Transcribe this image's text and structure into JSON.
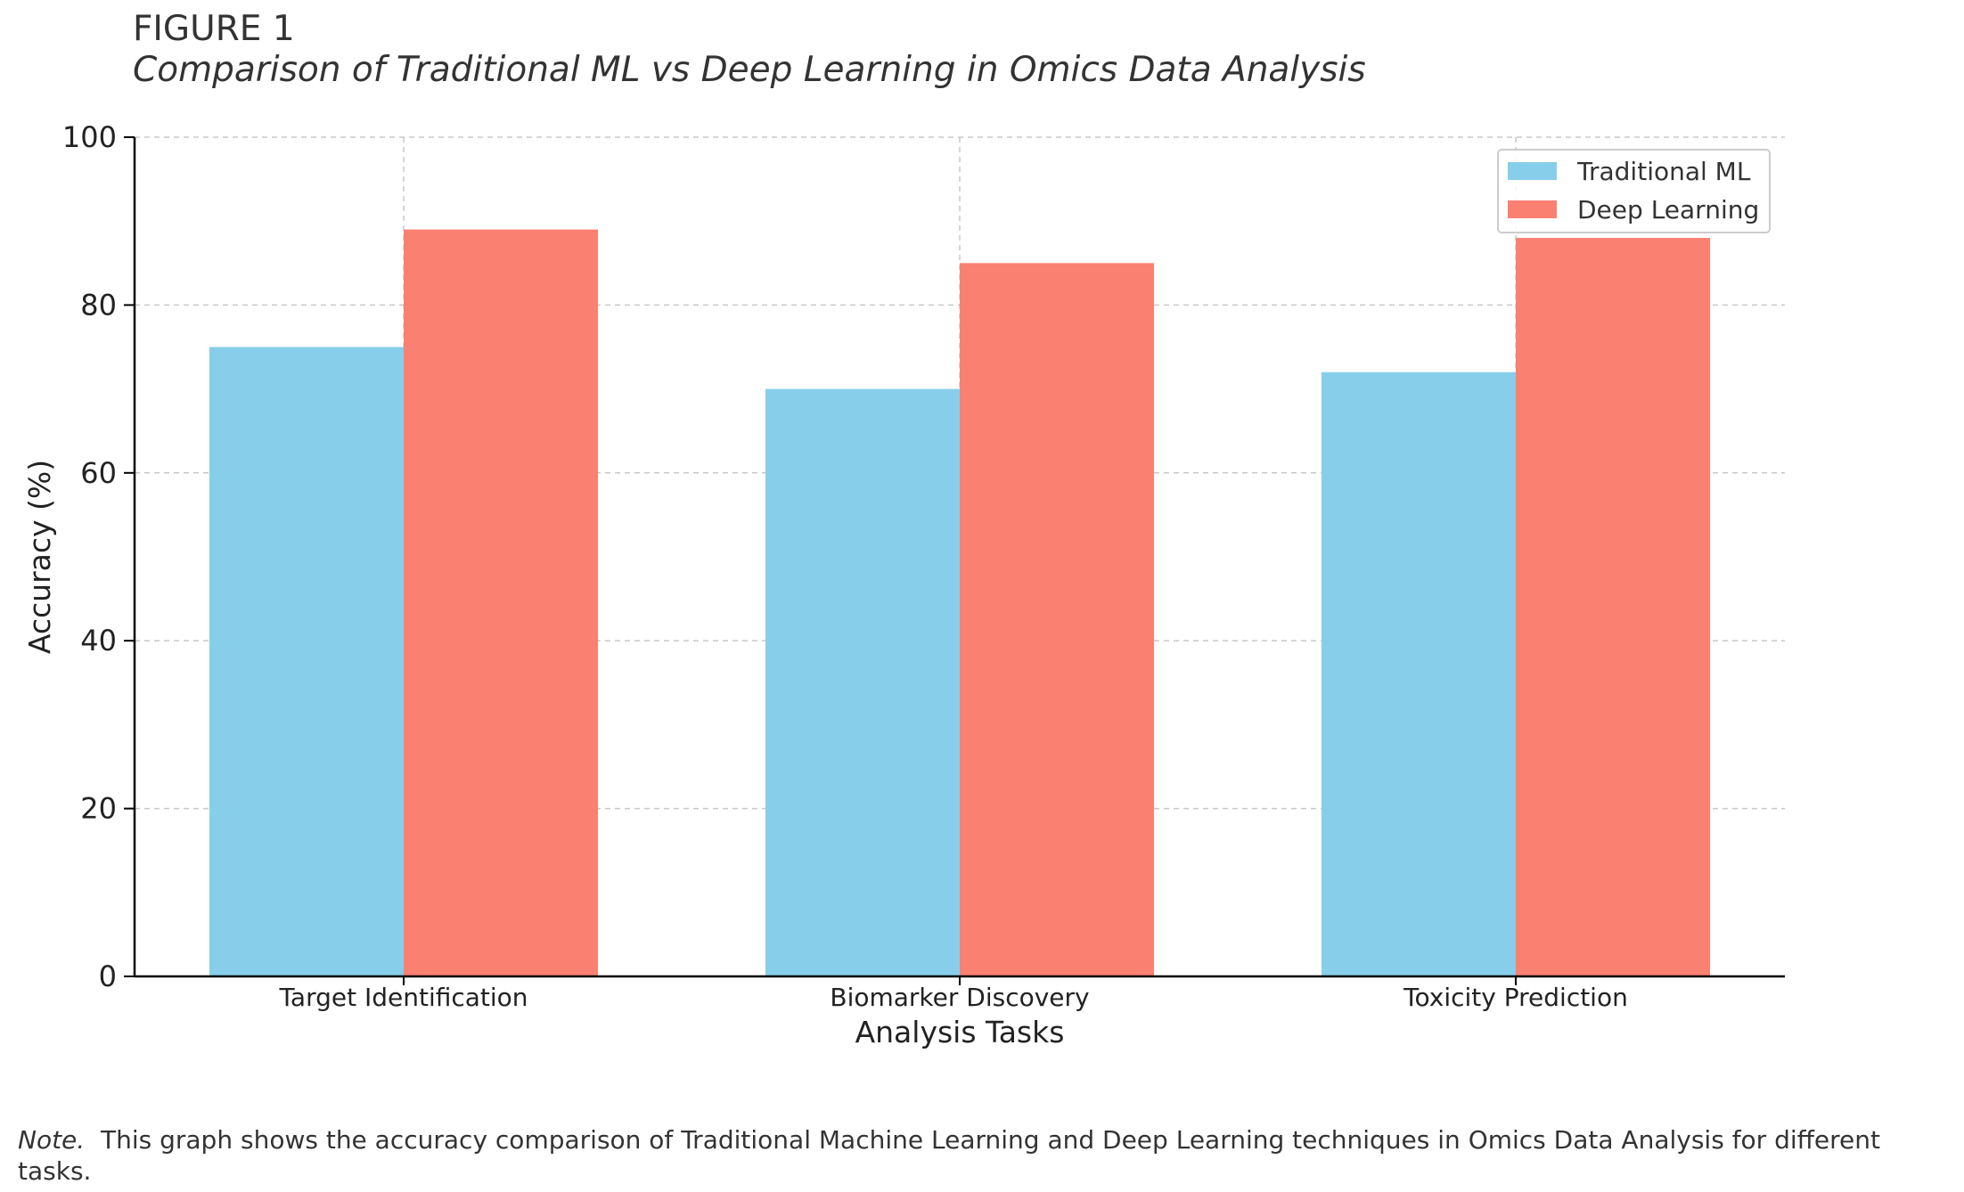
{
  "figure_label": "FIGURE 1",
  "note": {
    "label": "Note.",
    "text": "This graph shows the accuracy comparison of Traditional Machine Learning and Deep Learning techniques in Omics Data Analysis for different tasks."
  },
  "chart_data": {
    "type": "bar",
    "title": "Comparison of Traditional ML vs Deep Learning in Omics Data Analysis",
    "xlabel": "Analysis Tasks",
    "ylabel": "Accuracy (%)",
    "categories": [
      "Target Identification",
      "Biomarker Discovery",
      "Toxicity Prediction"
    ],
    "series": [
      {
        "name": "Traditional ML",
        "values": [
          75,
          70,
          72
        ],
        "color": "#87CEEB"
      },
      {
        "name": "Deep Learning",
        "values": [
          89,
          85,
          88
        ],
        "color": "#FA8072"
      }
    ],
    "ylim": [
      0,
      100
    ],
    "yticks": [
      0,
      20,
      40,
      60,
      80,
      100
    ],
    "grid": true,
    "legend": "top-right"
  }
}
